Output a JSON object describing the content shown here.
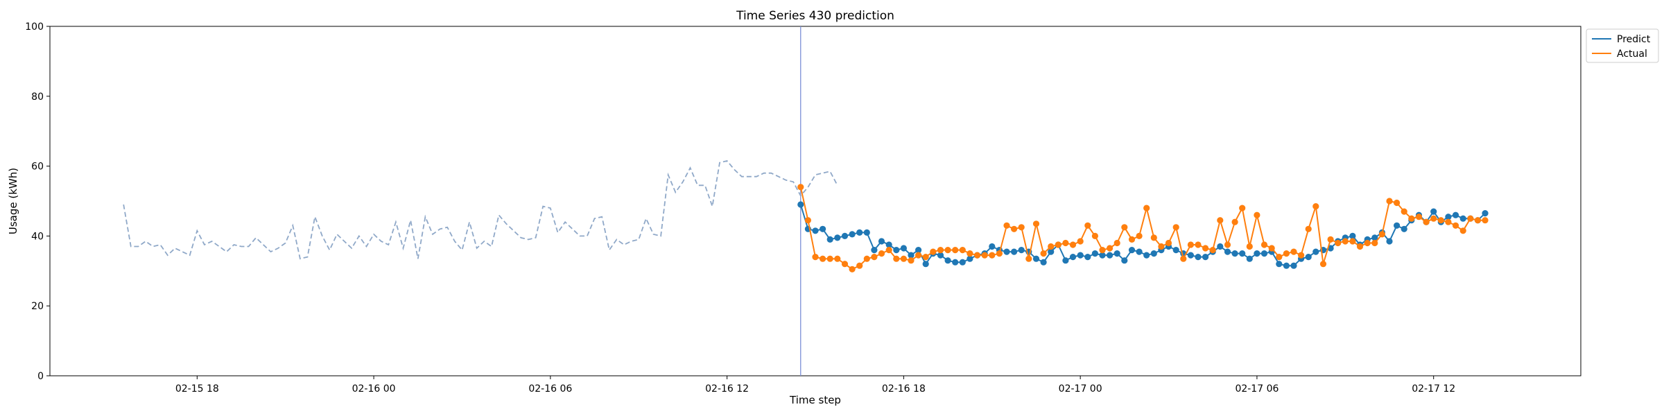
{
  "chart_data": {
    "type": "line",
    "title": "Time Series 430 prediction",
    "xlabel": "Time step",
    "ylabel": "Usage (kWh)",
    "ylim": [
      0,
      100
    ],
    "xlim": [
      "2025-02-15 13:00",
      "2025-02-17 17:00"
    ],
    "x_axis_type": "date",
    "yticks": [
      0,
      20,
      40,
      60,
      80,
      100
    ],
    "xticks": [
      {
        "x": "2025-02-15 18:00",
        "label": "02-15 18"
      },
      {
        "x": "2025-02-16 00:00",
        "label": "02-16 00"
      },
      {
        "x": "2025-02-16 06:00",
        "label": "02-16 06"
      },
      {
        "x": "2025-02-16 12:00",
        "label": "02-16 12"
      },
      {
        "x": "2025-02-16 18:00",
        "label": "02-16 18"
      },
      {
        "x": "2025-02-17 00:00",
        "label": "02-17 00"
      },
      {
        "x": "2025-02-17 06:00",
        "label": "02-17 06"
      },
      {
        "x": "2025-02-17 12:00",
        "label": "02-17 12"
      }
    ],
    "grid": false,
    "legend_position": "top-right-outside",
    "forecast_start": "2025-02-16 14:30",
    "history": {
      "start": "2025-02-15 15:30",
      "step_minutes": 15,
      "color": "#8fa8c8",
      "values": [
        49,
        37,
        37,
        38.5,
        37,
        37.5,
        34.5,
        36.5,
        35.5,
        34.5,
        41.5,
        37.5,
        38.5,
        37,
        35.5,
        37.5,
        37,
        37,
        39.5,
        37.5,
        35.5,
        36.5,
        38,
        43,
        33.5,
        34,
        45.5,
        40,
        36,
        40.5,
        38.5,
        36.5,
        40,
        37,
        40.5,
        38.5,
        37.5,
        44,
        36.5,
        44.5,
        33.5,
        45.5,
        40.5,
        42,
        42.5,
        38.5,
        36,
        44,
        36.5,
        38.5,
        37,
        46,
        43.5,
        41.5,
        39.5,
        39,
        39.5,
        48.5,
        48,
        41,
        44,
        42,
        40,
        40,
        45,
        45.5,
        36,
        39,
        37.5,
        38.5,
        39,
        45,
        40.5,
        40,
        57.5,
        52.5,
        55.5,
        59.5,
        54.5,
        54.5,
        48.5,
        61,
        61.5,
        59,
        57,
        57,
        57,
        58,
        58,
        57,
        56,
        55.5,
        51.5,
        54,
        57.5,
        58,
        58.5,
        54.5
      ]
    },
    "forecast_x": {
      "start": "2025-02-16 14:30",
      "step_minutes": 15
    },
    "series": [
      {
        "name": "Predict",
        "color": "#1f77b4",
        "values": [
          49,
          42,
          41.5,
          42,
          39,
          39.5,
          40,
          40.5,
          41,
          41,
          36,
          38.5,
          37.5,
          36,
          36.5,
          34.5,
          36,
          32,
          35,
          34.5,
          33,
          32.5,
          32.5,
          33.5,
          34.5,
          35,
          37,
          36,
          35.5,
          35.5,
          36,
          35.5,
          33.5,
          32.5,
          35.5,
          37.5,
          33,
          34,
          34.5,
          34,
          35,
          34.5,
          34.5,
          35,
          33,
          36,
          35.5,
          34.5,
          35,
          36,
          37,
          36,
          35,
          34.5,
          34,
          34,
          35.5,
          37,
          35.5,
          35,
          35,
          33.5,
          35,
          35,
          35.5,
          32,
          31.5,
          31.5,
          33.5,
          34,
          35.5,
          36,
          36.5,
          38.5,
          39.5,
          40,
          37.5,
          39,
          39.5,
          41,
          38.5,
          43,
          42,
          44.5,
          46,
          44,
          47,
          44,
          45.5,
          46,
          45,
          45,
          44.5,
          46.5
        ]
      },
      {
        "name": "Actual",
        "color": "#ff7f0e",
        "values": [
          54,
          44.5,
          34,
          33.5,
          33.5,
          33.5,
          32,
          30.5,
          31.5,
          33.5,
          34,
          35,
          36,
          33.5,
          33.5,
          33,
          34.5,
          34,
          35.5,
          36,
          36,
          36,
          36,
          35,
          34.5,
          34.5,
          34.5,
          35,
          43,
          42,
          42.5,
          33.5,
          43.5,
          35,
          37,
          37.5,
          38,
          37.5,
          38.5,
          43,
          40,
          36,
          36.5,
          38,
          42.5,
          39,
          40,
          48,
          39.5,
          37,
          38,
          42.5,
          33.5,
          37.5,
          37.5,
          36.5,
          36,
          44.5,
          37.5,
          44,
          48,
          37,
          46,
          37.5,
          36.5,
          34,
          35,
          35.5,
          34.5,
          42,
          48.5,
          32,
          39,
          38,
          38.5,
          38.5,
          37,
          38,
          38,
          40.5,
          50,
          49.5,
          47,
          45,
          45.5,
          44,
          45,
          44.5,
          44,
          43,
          41.5,
          45,
          44.5,
          44.5
        ]
      }
    ]
  }
}
